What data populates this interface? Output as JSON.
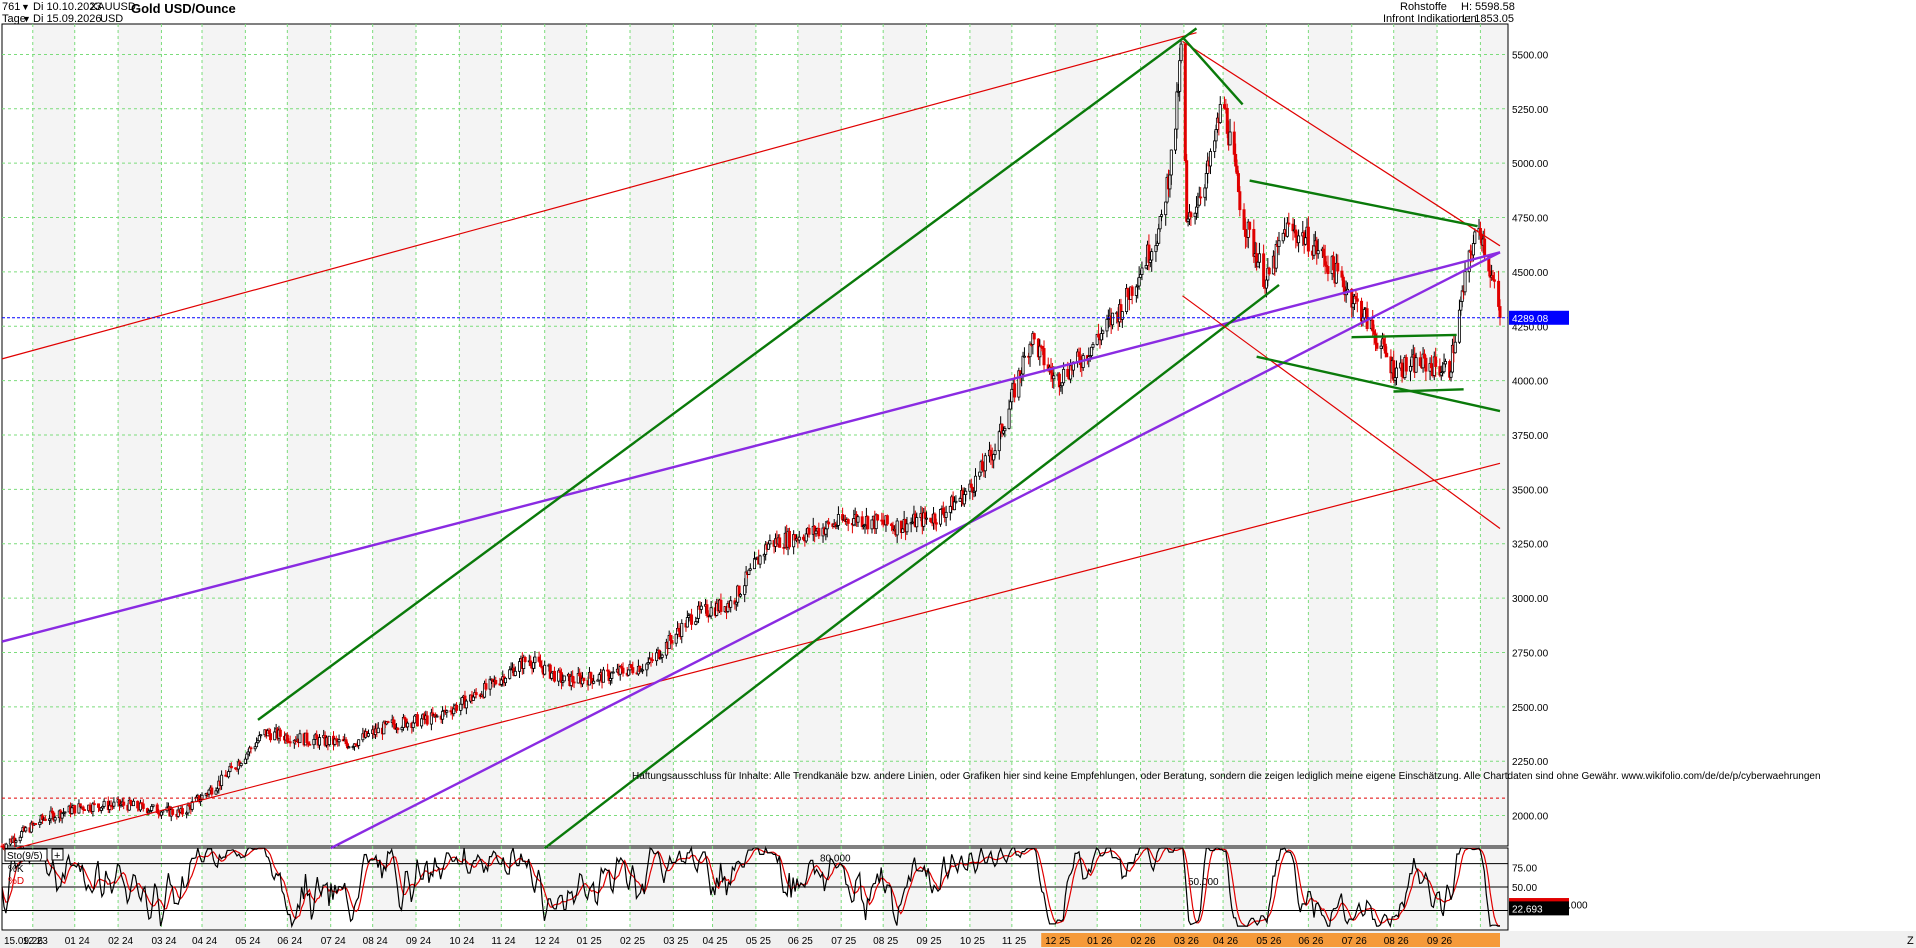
{
  "header": {
    "id": "761",
    "date_from": "Di 10.10.2023",
    "date_to": "Di 15.09.2026",
    "interval": "Tage",
    "symbol": "XAUUSD",
    "currency": "USD",
    "title": "Gold USD/Ounce",
    "category": "Rohstoffe",
    "source": "Infront Indikationen",
    "high_label": "H: 5598.58",
    "low_label": "L: 1853.05"
  },
  "chart_data": [
    {
      "type": "candlestick",
      "title": "Gold USD/Ounce",
      "ylim": [
        1860,
        5640
      ],
      "y_ticks": [
        "5500.00",
        "5250.00",
        "5000.00",
        "4750.00",
        "4500.00",
        "4250.00",
        "4000.00",
        "3750.00",
        "3500.00",
        "3250.00",
        "3000.00",
        "2750.00",
        "2500.00",
        "2250.00",
        "2000.00"
      ],
      "y_tick_values": [
        5500,
        5250,
        5000,
        4750,
        4500,
        4250,
        4000,
        3750,
        3500,
        3250,
        3000,
        2750,
        2500,
        2250,
        2000
      ],
      "x_ticks": [
        "15.09.26",
        "12 23",
        "01 24",
        "02 24",
        "03 24",
        "04 24",
        "05 24",
        "06 24",
        "07 24",
        "08 24",
        "09 24",
        "10 24",
        "11 24",
        "12 24",
        "01 25",
        "02 25",
        "03 25",
        "04 25",
        "05 25",
        "06 25",
        "07 25",
        "08 25",
        "09 25",
        "10 25",
        "11 25",
        "12 25",
        "01 26",
        "02 26",
        "03 26",
        "04 26",
        "05 26",
        "06 26",
        "07 26",
        "08 26",
        "09 26"
      ],
      "highlighted_x_ticks": [
        "12 25",
        "01 26",
        "02 26",
        "03 26",
        "04 26",
        "05 26",
        "06 26",
        "07 26",
        "08 26",
        "09 26"
      ],
      "last_price": 4289.08,
      "last_price_label": "4289.08",
      "reference_level": 2080,
      "price_path": [
        [
          "2023-10-10",
          1860
        ],
        [
          "2023-11-10",
          1990
        ],
        [
          "2023-12-05",
          2040
        ],
        [
          "2024-01-05",
          2050
        ],
        [
          "2024-02-15",
          2010
        ],
        [
          "2024-03-15",
          2160
        ],
        [
          "2024-04-15",
          2380
        ],
        [
          "2024-05-15",
          2350
        ],
        [
          "2024-06-15",
          2330
        ],
        [
          "2024-07-15",
          2420
        ],
        [
          "2024-08-15",
          2450
        ],
        [
          "2024-09-15",
          2560
        ],
        [
          "2024-10-20",
          2720
        ],
        [
          "2024-11-15",
          2620
        ],
        [
          "2024-12-15",
          2640
        ],
        [
          "2025-01-15",
          2700
        ],
        [
          "2025-02-15",
          2920
        ],
        [
          "2025-03-15",
          2980
        ],
        [
          "2025-04-10",
          3250
        ],
        [
          "2025-05-10",
          3300
        ],
        [
          "2025-06-10",
          3370
        ],
        [
          "2025-07-10",
          3330
        ],
        [
          "2025-08-10",
          3380
        ],
        [
          "2025-09-01",
          3500
        ],
        [
          "2025-09-20",
          3700
        ],
        [
          "2025-10-15",
          4200
        ],
        [
          "2025-11-01",
          4000
        ],
        [
          "2025-11-20",
          4100
        ],
        [
          "2025-12-20",
          4350
        ],
        [
          "2026-01-15",
          4700
        ],
        [
          "2026-01-25",
          5100
        ],
        [
          "2026-01-31",
          5598.58
        ],
        [
          "2026-02-03",
          4700
        ],
        [
          "2026-02-20",
          5000
        ],
        [
          "2026-03-01",
          5300
        ],
        [
          "2026-03-15",
          4750
        ],
        [
          "2026-04-01",
          4450
        ],
        [
          "2026-04-15",
          4700
        ],
        [
          "2026-05-01",
          4650
        ],
        [
          "2026-05-20",
          4500
        ],
        [
          "2026-06-10",
          4300
        ],
        [
          "2026-07-01",
          4050
        ],
        [
          "2026-07-20",
          4080
        ],
        [
          "2026-08-10",
          4050
        ],
        [
          "2026-08-25",
          4600
        ],
        [
          "2026-09-01",
          4700
        ],
        [
          "2026-09-10",
          4450
        ],
        [
          "2026-09-15",
          4289.08
        ]
      ],
      "trendlines": [
        {
          "color": "#e00000",
          "points": [
            [
              "2023-10-10",
              4100
            ],
            [
              "2026-02-10",
              5600
            ]
          ]
        },
        {
          "color": "#e00000",
          "points": [
            [
              "2023-10-20",
              1850
            ],
            [
              "2026-09-15",
              3620
            ]
          ]
        },
        {
          "color": "#8a2be2",
          "points": [
            [
              "2023-10-10",
              2800
            ],
            [
              "2026-09-15",
              4590
            ]
          ]
        },
        {
          "color": "#8a2be2",
          "points": [
            [
              "2024-06-01",
              1850
            ],
            [
              "2026-09-15",
              4590
            ]
          ]
        },
        {
          "color": "#0a7a0a",
          "points": [
            [
              "2024-04-10",
              2440
            ],
            [
              "2026-02-10",
              5620
            ]
          ]
        },
        {
          "color": "#0a7a0a",
          "points": [
            [
              "2024-11-01",
              1850
            ],
            [
              "2026-04-10",
              4440
            ]
          ]
        },
        {
          "color": "#e00000",
          "points": [
            [
              "2026-01-31",
              5560
            ],
            [
              "2026-09-15",
              4620
            ]
          ]
        },
        {
          "color": "#e00000",
          "points": [
            [
              "2026-01-31",
              4390
            ],
            [
              "2026-09-15",
              3320
            ]
          ]
        },
        {
          "color": "#0a7a0a",
          "points": [
            [
              "2026-01-31",
              5580
            ],
            [
              "2026-03-15",
              5270
            ]
          ]
        },
        {
          "color": "#0a7a0a",
          "points": [
            [
              "2026-03-20",
              4920
            ],
            [
              "2026-08-30",
              4710
            ]
          ]
        },
        {
          "color": "#0a7a0a",
          "points": [
            [
              "2026-03-25",
              4110
            ],
            [
              "2026-09-15",
              3860
            ]
          ]
        },
        {
          "color": "#0a7a0a",
          "points": [
            [
              "2026-06-01",
              4200
            ],
            [
              "2026-08-15",
              4210
            ]
          ]
        },
        {
          "color": "#0a7a0a",
          "points": [
            [
              "2026-07-01",
              3950
            ],
            [
              "2026-08-20",
              3960
            ]
          ]
        }
      ]
    },
    {
      "type": "line",
      "title": "Sto(9/5)",
      "ylim": [
        -5,
        100
      ],
      "y_ticks": [
        "75.00",
        "50.00"
      ],
      "y_tick_values": [
        75,
        50
      ],
      "levels": [
        80,
        50,
        20
      ],
      "level_labels": [
        "80.000",
        "50.000",
        "20.000"
      ],
      "series": [
        {
          "name": "%K",
          "color": "#000000"
        },
        {
          "name": "%D",
          "color": "#e00000"
        }
      ],
      "last_k_label": "26.967",
      "last_d_label": "22.693",
      "last_k": 26.967,
      "last_d": 22.693
    }
  ],
  "disclaimer": "Haftungsausschluss für Inhalte: Alle Trendkanäle bzw. andere Linien, oder Grafiken hier sind keine Empfehlungen, oder Beratung, sondern die zeigen lediglich meine eigene Einschätzung. Alle Chartdaten sind ohne Gewähr. www.wikifolio.com/de/de/p/cyberwaehrungen",
  "z_label": "Z",
  "colors": {
    "up": "#000000",
    "down": "#e00000",
    "grid": "#7cdc7c",
    "price_marker": "#0000ff",
    "k_marker": "#e00000",
    "d_marker": "#000000",
    "highlight_axis": "#f59a3a"
  }
}
